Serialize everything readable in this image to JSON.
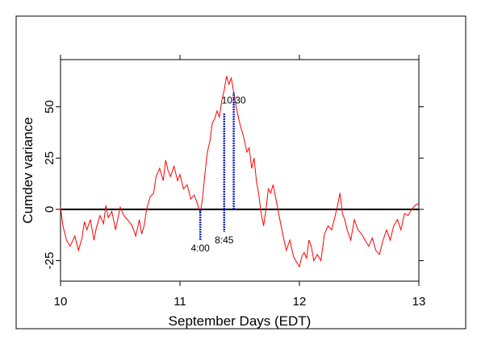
{
  "chart_data": {
    "type": "line",
    "title": "",
    "xlabel": "September Days (EDT)",
    "ylabel": "Cumdev variance",
    "xlim": [
      10,
      13
    ],
    "ylim": [
      -35,
      73
    ],
    "x_ticks": [
      10,
      11,
      12,
      13
    ],
    "x_tick_labels": [
      "10",
      "11",
      "12",
      "13"
    ],
    "y_ticks": [
      -25,
      0,
      25,
      50
    ],
    "y_tick_labels": [
      "-25",
      "0",
      "25",
      "50"
    ],
    "grid": false,
    "legend": "none",
    "zero_line": true,
    "colors": {
      "series": "#ff0000",
      "markers": "#1020c0",
      "zero_line": "#000000",
      "frame": "#000000"
    },
    "series": [
      {
        "x": [
          10.0,
          10.02,
          10.05,
          10.08,
          10.12,
          10.15,
          10.18,
          10.2,
          10.22,
          10.25,
          10.28,
          10.3,
          10.33,
          10.36,
          10.38,
          10.4,
          10.43,
          10.46,
          10.5,
          10.53,
          10.56,
          10.6,
          10.63,
          10.66,
          10.68,
          10.7,
          10.72,
          10.75,
          10.78,
          10.8,
          10.83,
          10.86,
          10.88,
          10.9,
          10.92,
          10.95,
          10.98,
          11.0,
          11.03,
          11.06,
          11.09,
          11.12,
          11.15,
          11.17,
          11.19,
          11.21,
          11.23,
          11.25,
          11.27,
          11.29,
          11.31,
          11.33,
          11.35,
          11.37,
          11.39,
          11.41,
          11.43,
          11.45,
          11.47,
          11.5,
          11.53,
          11.56,
          11.58,
          11.6,
          11.62,
          11.64,
          11.66,
          11.68,
          11.7,
          11.72,
          11.74,
          11.76,
          11.78,
          11.8,
          11.83,
          11.86,
          11.89,
          11.92,
          11.95,
          11.98,
          12.0,
          12.02,
          12.04,
          12.06,
          12.08,
          12.1,
          12.12,
          12.15,
          12.18,
          12.21,
          12.24,
          12.27,
          12.3,
          12.32,
          12.34,
          12.36,
          12.38,
          12.4,
          12.43,
          12.46,
          12.49,
          12.52,
          12.55,
          12.58,
          12.61,
          12.64,
          12.67,
          12.7,
          12.73,
          12.76,
          12.79,
          12.82,
          12.85,
          12.88,
          12.91,
          12.94,
          12.97,
          13.0
        ],
        "y": [
          1,
          -8,
          -15,
          -18,
          -13,
          -20,
          -14,
          -6,
          -10,
          -5,
          -15,
          -9,
          -3,
          -7,
          2,
          -4,
          -1,
          -10,
          1,
          -3,
          -5,
          -8,
          -13,
          -5,
          -12,
          -8,
          0,
          6,
          8,
          16,
          20,
          14,
          24,
          19,
          16,
          21,
          14,
          17,
          10,
          12,
          5,
          7,
          2,
          -2,
          6,
          18,
          28,
          33,
          42,
          44,
          48,
          45,
          53,
          58,
          65,
          61,
          64,
          57,
          50,
          42,
          36,
          28,
          30,
          20,
          25,
          14,
          7,
          -2,
          -8,
          0,
          10,
          8,
          12,
          6,
          -3,
          -12,
          -20,
          -15,
          -23,
          -26,
          -28,
          -23,
          -21,
          -24,
          -15,
          -18,
          -25,
          -22,
          -25,
          -12,
          -8,
          -10,
          -3,
          2,
          8,
          -2,
          -5,
          -10,
          -15,
          -5,
          -10,
          -12,
          -15,
          -18,
          -14,
          -20,
          -22,
          -15,
          -10,
          -15,
          -8,
          -5,
          -10,
          -2,
          -3,
          0,
          2,
          3
        ]
      }
    ],
    "event_markers": [
      {
        "x": 11.17,
        "y_from": 0,
        "y_to": -15,
        "label": "4:00"
      },
      {
        "x": 11.37,
        "y_from": 0,
        "y_to": -11,
        "label": "8:45"
      },
      {
        "x": 11.45,
        "y_from": 0,
        "y_to": 57,
        "label": "10:30"
      },
      {
        "x": 11.37,
        "y_from": 0,
        "y_to": 47,
        "label": ""
      }
    ]
  }
}
